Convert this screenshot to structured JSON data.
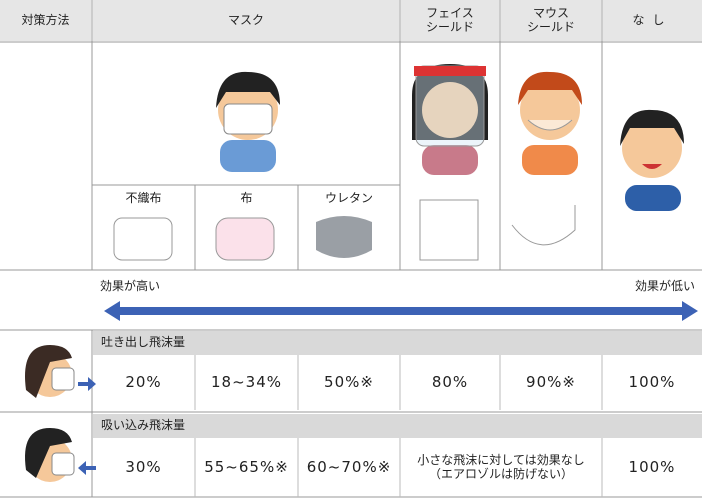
{
  "header": {
    "method": "対策方法",
    "mask": "マスク",
    "face_shield": "フェイス\nシールド",
    "mouth_shield": "マウス\nシールド",
    "none": "なし"
  },
  "mask_types": [
    "不織布",
    "布",
    "ウレタン"
  ],
  "effect_scale": {
    "high": "効果が高い",
    "low": "効果が低い"
  },
  "rows": [
    {
      "label": "吐き出し飛沫量",
      "cells": [
        "20%",
        "18~34%",
        "50%※",
        "80%",
        "90%※",
        "100%"
      ]
    },
    {
      "label": "吸い込み飛沫量",
      "cells": [
        "30%",
        "55~65%※",
        "60~70%※",
        "小さな飛沫に対しては効果なし\n（エアロゾルは防げない）",
        "100%"
      ]
    }
  ]
}
